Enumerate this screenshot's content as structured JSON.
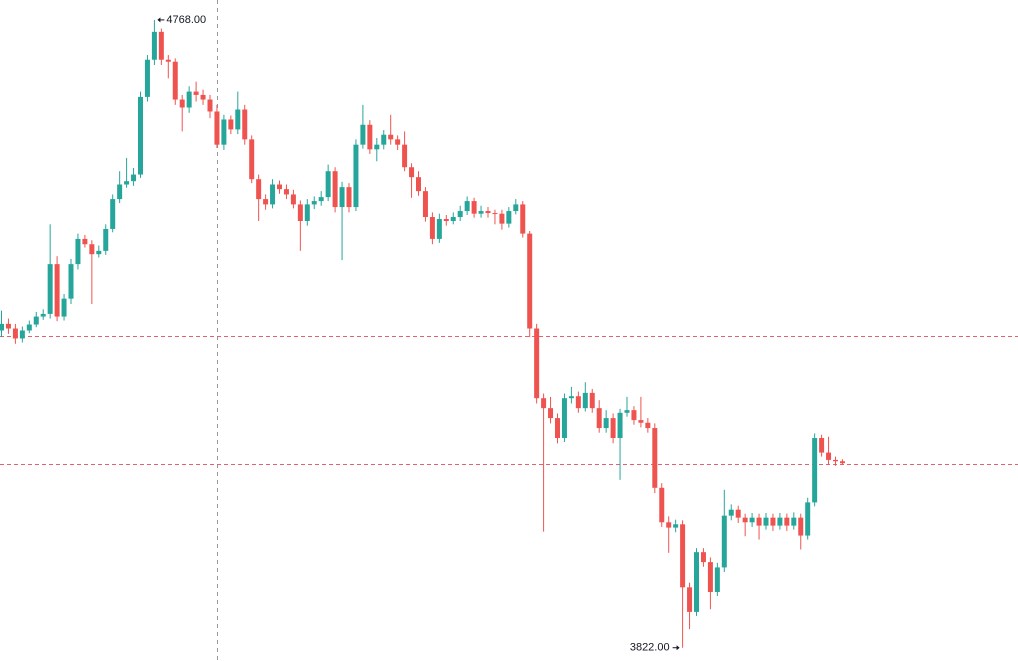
{
  "chart_data": {
    "type": "candlestick",
    "ylim": [
      3802,
      4798
    ],
    "up_color": "#26a69a",
    "down_color": "#ef5350",
    "price_line_color": "#e06470",
    "price_lines": [
      4292,
      4099
    ],
    "annotations": [
      {
        "label": "4768.00",
        "value": 4768,
        "kind": "high"
      },
      {
        "label": "3822.00",
        "value": 3822,
        "kind": "low"
      }
    ],
    "open": [
      4300,
      4310,
      4303,
      4288,
      4300,
      4309,
      4321,
      4325,
      4400,
      4321,
      4348,
      4400,
      4438,
      4430,
      4415,
      4420,
      4453,
      4498,
      4520,
      4525,
      4535,
      4652,
      4708,
      4750,
      4708,
      4705,
      4648,
      4636,
      4660,
      4655,
      4648,
      4630,
      4580,
      4618,
      4603,
      4633,
      4588,
      4528,
      4498,
      4490,
      4520,
      4513,
      4505,
      4490,
      4465,
      4490,
      4495,
      4501,
      4540,
      4486,
      4516,
      4486,
      4580,
      4610,
      4573,
      4580,
      4595,
      4588,
      4580,
      4546,
      4531,
      4510,
      4471,
      4438,
      4468,
      4465,
      4471,
      4480,
      4495,
      4476,
      4480,
      4477,
      4476,
      4461,
      4480,
      4490,
      4446,
      4303,
      4198,
      4183,
      4168,
      4138,
      4198,
      4201,
      4183,
      4206,
      4183,
      4153,
      4168,
      4138,
      4176,
      4180,
      4165,
      4161,
      4153,
      4063,
      4011,
      4003,
      4008,
      3913,
      3876,
      3966,
      3951,
      3906,
      3943,
      4021,
      4030,
      4018,
      4011,
      4018,
      4006,
      4018,
      4006,
      4018,
      4006,
      4018,
      3991,
      4041,
      4138,
      4116,
      4105,
      4103
    ],
    "high": [
      4330,
      4318,
      4310,
      4306,
      4315,
      4328,
      4332,
      4460,
      4412,
      4355,
      4408,
      4446,
      4444,
      4436,
      4428,
      4460,
      4505,
      4540,
      4560,
      4545,
      4660,
      4715,
      4768,
      4755,
      4715,
      4710,
      4655,
      4668,
      4675,
      4663,
      4655,
      4640,
      4625,
      4624,
      4660,
      4640,
      4594,
      4535,
      4505,
      4528,
      4526,
      4520,
      4512,
      4496,
      4498,
      4502,
      4510,
      4550,
      4546,
      4524,
      4522,
      4588,
      4640,
      4617,
      4590,
      4602,
      4625,
      4594,
      4600,
      4552,
      4540,
      4516,
      4478,
      4476,
      4474,
      4478,
      4488,
      4502,
      4500,
      4488,
      4486,
      4482,
      4482,
      4486,
      4498,
      4495,
      4450,
      4310,
      4205,
      4200,
      4175,
      4205,
      4215,
      4208,
      4222,
      4212,
      4195,
      4180,
      4175,
      4182,
      4200,
      4186,
      4200,
      4168,
      4160,
      4070,
      4020,
      4015,
      4014,
      3920,
      3972,
      3972,
      3958,
      3950,
      4060,
      4038,
      4036,
      4024,
      4025,
      4024,
      4025,
      4024,
      4025,
      4024,
      4026,
      4024,
      4048,
      4145,
      4143,
      4140,
      4110,
      4106
    ],
    "low": [
      4290,
      4295,
      4280,
      4282,
      4296,
      4305,
      4316,
      4318,
      4314,
      4315,
      4340,
      4392,
      4425,
      4340,
      4410,
      4414,
      4448,
      4492,
      4515,
      4518,
      4530,
      4645,
      4700,
      4700,
      4680,
      4640,
      4600,
      4628,
      4645,
      4640,
      4620,
      4575,
      4572,
      4596,
      4596,
      4580,
      4522,
      4465,
      4482,
      4484,
      4506,
      4498,
      4484,
      4420,
      4458,
      4483,
      4488,
      4495,
      4478,
      4406,
      4478,
      4480,
      4574,
      4566,
      4555,
      4573,
      4580,
      4572,
      4540,
      4500,
      4503,
      4464,
      4430,
      4432,
      4458,
      4460,
      4465,
      4474,
      4470,
      4470,
      4470,
      4460,
      4452,
      4455,
      4475,
      4440,
      4290,
      4190,
      3997,
      4160,
      4130,
      4132,
      4190,
      4176,
      4178,
      4176,
      4146,
      4146,
      4130,
      4075,
      4170,
      4158,
      4154,
      4146,
      4055,
      4004,
      3965,
      3996,
      3822,
      3850,
      3870,
      3944,
      3880,
      3900,
      3936,
      4014,
      4010,
      3990,
      4004,
      3985,
      4000,
      3998,
      4000,
      3998,
      4000,
      3970,
      3985,
      4035,
      4110,
      4098,
      4096,
      4098
    ],
    "close": [
      4310,
      4303,
      4288,
      4300,
      4309,
      4321,
      4325,
      4400,
      4321,
      4348,
      4400,
      4438,
      4430,
      4415,
      4420,
      4453,
      4498,
      4520,
      4525,
      4535,
      4652,
      4708,
      4750,
      4708,
      4705,
      4648,
      4636,
      4660,
      4655,
      4648,
      4630,
      4580,
      4618,
      4603,
      4633,
      4588,
      4528,
      4498,
      4490,
      4520,
      4513,
      4505,
      4490,
      4465,
      4490,
      4495,
      4501,
      4540,
      4486,
      4516,
      4486,
      4580,
      4610,
      4573,
      4580,
      4595,
      4588,
      4580,
      4546,
      4531,
      4510,
      4471,
      4438,
      4468,
      4465,
      4471,
      4480,
      4495,
      4476,
      4480,
      4477,
      4476,
      4461,
      4480,
      4490,
      4446,
      4303,
      4198,
      4183,
      4168,
      4138,
      4198,
      4201,
      4183,
      4206,
      4183,
      4153,
      4168,
      4138,
      4176,
      4180,
      4165,
      4161,
      4153,
      4063,
      4011,
      4003,
      4008,
      3913,
      3876,
      3966,
      3951,
      3906,
      3943,
      4021,
      4030,
      4018,
      4011,
      4018,
      4006,
      4018,
      4006,
      4018,
      4006,
      4018,
      3991,
      4041,
      4138,
      4116,
      4105,
      4103,
      4100
    ]
  }
}
